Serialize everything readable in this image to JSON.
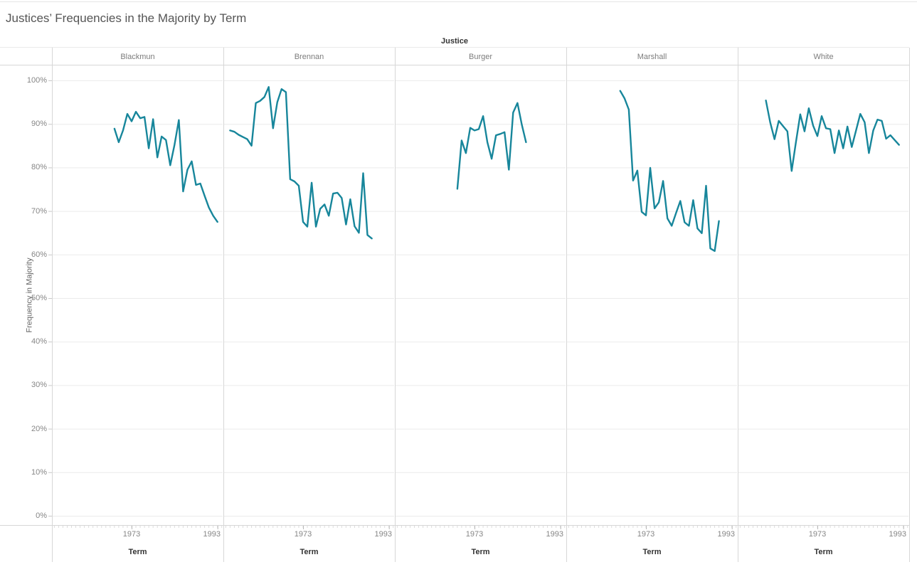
{
  "page": {
    "title": "Justices’ Frequencies in the Majority by Term"
  },
  "facet_field_label": "Justice",
  "y_axis": {
    "label": "Frequency in Majority",
    "tick_labels": [
      "0%",
      "10%",
      "20%",
      "30%",
      "40%",
      "50%",
      "60%",
      "70%",
      "80%",
      "90%",
      "100%"
    ]
  },
  "x_axis": {
    "label": "Term",
    "tick_years": [
      1973,
      1993
    ]
  },
  "style": {
    "line_color": "#17869B",
    "grid_color": "#ebebeb",
    "border_color": "#d7d7d7",
    "tick_color": "#c9c9c9",
    "minor_tick_color": "#dcdcdc"
  },
  "chart_data": {
    "type": "line",
    "title": "Justices’ Frequencies in the Majority by Term",
    "xlabel": "Term",
    "ylabel": "Frequency in Majority",
    "x_domain": [
      1954.4,
      1994.4
    ],
    "ylim_pct": [
      0,
      100
    ],
    "y_tick_step_pct": 10,
    "x_ticks": [
      1973,
      1993
    ],
    "grid": "horizontal",
    "legend": "none",
    "facets": [
      {
        "name": "Blackmun",
        "start_term": 1969,
        "end_term": 1993,
        "values_pct": [
          88.9,
          85.8,
          88.5,
          92.3,
          90.6,
          92.8,
          91.3,
          91.6,
          84.4,
          91.1,
          82.3,
          87.1,
          86.3,
          80.5,
          85.2,
          90.9,
          74.5,
          79.5,
          81.4,
          76.0,
          76.3,
          73.5,
          70.8,
          68.9,
          67.5
        ]
      },
      {
        "name": "Brennan",
        "start_term": 1956,
        "end_term": 1989,
        "values_pct": [
          88.5,
          88.2,
          87.5,
          87.0,
          86.5,
          85.0,
          94.8,
          95.3,
          96.2,
          98.5,
          89.0,
          95.0,
          98.0,
          97.3,
          77.3,
          76.8,
          75.8,
          67.5,
          66.4,
          76.5,
          66.4,
          70.5,
          71.5,
          68.9,
          74.0,
          74.2,
          73.0,
          66.9,
          72.7,
          66.5,
          65.0,
          78.7,
          64.5,
          63.7
        ]
      },
      {
        "name": "Burger",
        "start_term": 1969,
        "end_term": 1985,
        "values_pct": [
          75.1,
          86.2,
          83.3,
          89.1,
          88.5,
          88.8,
          91.8,
          85.8,
          82.0,
          87.4,
          87.7,
          88.1,
          79.5,
          92.6,
          94.8,
          89.9,
          85.8
        ]
      },
      {
        "name": "Marshall",
        "start_term": 1967,
        "end_term": 1990,
        "values_pct": [
          97.6,
          95.9,
          93.3,
          77.0,
          79.3,
          69.8,
          69.0,
          79.9,
          70.6,
          72.0,
          76.9,
          68.3,
          66.6,
          69.5,
          72.3,
          67.4,
          66.6,
          72.5,
          66.0,
          64.9,
          75.8,
          61.4,
          60.8,
          67.7
        ]
      },
      {
        "name": "White",
        "start_term": 1961,
        "end_term": 1992,
        "values_pct": [
          95.4,
          90.4,
          86.5,
          90.7,
          89.5,
          88.3,
          79.2,
          85.8,
          92.2,
          88.3,
          93.6,
          89.6,
          87.2,
          91.8,
          89.0,
          88.8,
          83.3,
          88.5,
          84.4,
          89.4,
          84.7,
          88.5,
          92.3,
          90.4,
          83.3,
          88.5,
          91.0,
          90.7,
          86.6,
          87.4,
          86.3,
          85.2
        ]
      }
    ]
  }
}
